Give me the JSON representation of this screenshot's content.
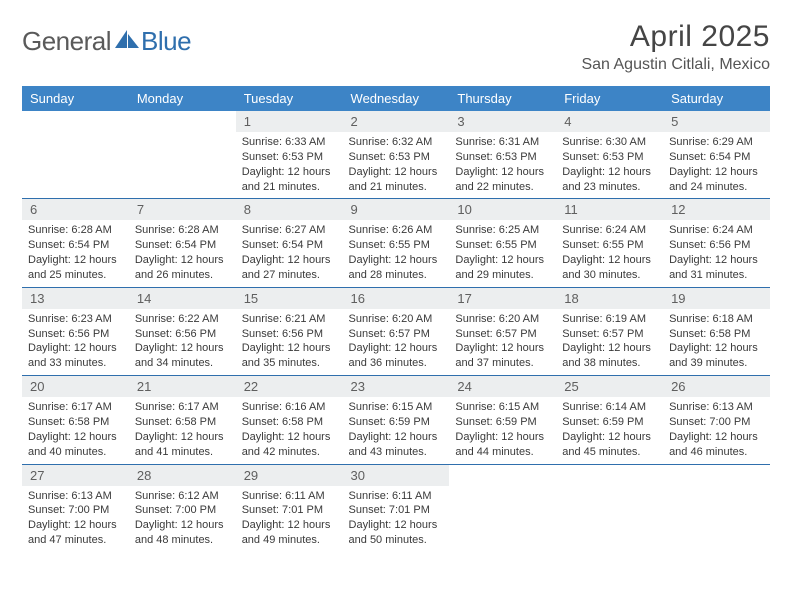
{
  "logo": {
    "general": "General",
    "blue": "Blue"
  },
  "title": "April 2025",
  "location": "San Agustin Citlali, Mexico",
  "header_color": "#3d84c6",
  "divider_color": "#2f6fad",
  "daynum_bg": "#eceeef",
  "weekdays": [
    "Sunday",
    "Monday",
    "Tuesday",
    "Wednesday",
    "Thursday",
    "Friday",
    "Saturday"
  ],
  "weeks": [
    [
      null,
      null,
      {
        "n": "1",
        "sr": "Sunrise: 6:33 AM",
        "ss": "Sunset: 6:53 PM",
        "d1": "Daylight: 12 hours",
        "d2": "and 21 minutes."
      },
      {
        "n": "2",
        "sr": "Sunrise: 6:32 AM",
        "ss": "Sunset: 6:53 PM",
        "d1": "Daylight: 12 hours",
        "d2": "and 21 minutes."
      },
      {
        "n": "3",
        "sr": "Sunrise: 6:31 AM",
        "ss": "Sunset: 6:53 PM",
        "d1": "Daylight: 12 hours",
        "d2": "and 22 minutes."
      },
      {
        "n": "4",
        "sr": "Sunrise: 6:30 AM",
        "ss": "Sunset: 6:53 PM",
        "d1": "Daylight: 12 hours",
        "d2": "and 23 minutes."
      },
      {
        "n": "5",
        "sr": "Sunrise: 6:29 AM",
        "ss": "Sunset: 6:54 PM",
        "d1": "Daylight: 12 hours",
        "d2": "and 24 minutes."
      }
    ],
    [
      {
        "n": "6",
        "sr": "Sunrise: 6:28 AM",
        "ss": "Sunset: 6:54 PM",
        "d1": "Daylight: 12 hours",
        "d2": "and 25 minutes."
      },
      {
        "n": "7",
        "sr": "Sunrise: 6:28 AM",
        "ss": "Sunset: 6:54 PM",
        "d1": "Daylight: 12 hours",
        "d2": "and 26 minutes."
      },
      {
        "n": "8",
        "sr": "Sunrise: 6:27 AM",
        "ss": "Sunset: 6:54 PM",
        "d1": "Daylight: 12 hours",
        "d2": "and 27 minutes."
      },
      {
        "n": "9",
        "sr": "Sunrise: 6:26 AM",
        "ss": "Sunset: 6:55 PM",
        "d1": "Daylight: 12 hours",
        "d2": "and 28 minutes."
      },
      {
        "n": "10",
        "sr": "Sunrise: 6:25 AM",
        "ss": "Sunset: 6:55 PM",
        "d1": "Daylight: 12 hours",
        "d2": "and 29 minutes."
      },
      {
        "n": "11",
        "sr": "Sunrise: 6:24 AM",
        "ss": "Sunset: 6:55 PM",
        "d1": "Daylight: 12 hours",
        "d2": "and 30 minutes."
      },
      {
        "n": "12",
        "sr": "Sunrise: 6:24 AM",
        "ss": "Sunset: 6:56 PM",
        "d1": "Daylight: 12 hours",
        "d2": "and 31 minutes."
      }
    ],
    [
      {
        "n": "13",
        "sr": "Sunrise: 6:23 AM",
        "ss": "Sunset: 6:56 PM",
        "d1": "Daylight: 12 hours",
        "d2": "and 33 minutes."
      },
      {
        "n": "14",
        "sr": "Sunrise: 6:22 AM",
        "ss": "Sunset: 6:56 PM",
        "d1": "Daylight: 12 hours",
        "d2": "and 34 minutes."
      },
      {
        "n": "15",
        "sr": "Sunrise: 6:21 AM",
        "ss": "Sunset: 6:56 PM",
        "d1": "Daylight: 12 hours",
        "d2": "and 35 minutes."
      },
      {
        "n": "16",
        "sr": "Sunrise: 6:20 AM",
        "ss": "Sunset: 6:57 PM",
        "d1": "Daylight: 12 hours",
        "d2": "and 36 minutes."
      },
      {
        "n": "17",
        "sr": "Sunrise: 6:20 AM",
        "ss": "Sunset: 6:57 PM",
        "d1": "Daylight: 12 hours",
        "d2": "and 37 minutes."
      },
      {
        "n": "18",
        "sr": "Sunrise: 6:19 AM",
        "ss": "Sunset: 6:57 PM",
        "d1": "Daylight: 12 hours",
        "d2": "and 38 minutes."
      },
      {
        "n": "19",
        "sr": "Sunrise: 6:18 AM",
        "ss": "Sunset: 6:58 PM",
        "d1": "Daylight: 12 hours",
        "d2": "and 39 minutes."
      }
    ],
    [
      {
        "n": "20",
        "sr": "Sunrise: 6:17 AM",
        "ss": "Sunset: 6:58 PM",
        "d1": "Daylight: 12 hours",
        "d2": "and 40 minutes."
      },
      {
        "n": "21",
        "sr": "Sunrise: 6:17 AM",
        "ss": "Sunset: 6:58 PM",
        "d1": "Daylight: 12 hours",
        "d2": "and 41 minutes."
      },
      {
        "n": "22",
        "sr": "Sunrise: 6:16 AM",
        "ss": "Sunset: 6:58 PM",
        "d1": "Daylight: 12 hours",
        "d2": "and 42 minutes."
      },
      {
        "n": "23",
        "sr": "Sunrise: 6:15 AM",
        "ss": "Sunset: 6:59 PM",
        "d1": "Daylight: 12 hours",
        "d2": "and 43 minutes."
      },
      {
        "n": "24",
        "sr": "Sunrise: 6:15 AM",
        "ss": "Sunset: 6:59 PM",
        "d1": "Daylight: 12 hours",
        "d2": "and 44 minutes."
      },
      {
        "n": "25",
        "sr": "Sunrise: 6:14 AM",
        "ss": "Sunset: 6:59 PM",
        "d1": "Daylight: 12 hours",
        "d2": "and 45 minutes."
      },
      {
        "n": "26",
        "sr": "Sunrise: 6:13 AM",
        "ss": "Sunset: 7:00 PM",
        "d1": "Daylight: 12 hours",
        "d2": "and 46 minutes."
      }
    ],
    [
      {
        "n": "27",
        "sr": "Sunrise: 6:13 AM",
        "ss": "Sunset: 7:00 PM",
        "d1": "Daylight: 12 hours",
        "d2": "and 47 minutes."
      },
      {
        "n": "28",
        "sr": "Sunrise: 6:12 AM",
        "ss": "Sunset: 7:00 PM",
        "d1": "Daylight: 12 hours",
        "d2": "and 48 minutes."
      },
      {
        "n": "29",
        "sr": "Sunrise: 6:11 AM",
        "ss": "Sunset: 7:01 PM",
        "d1": "Daylight: 12 hours",
        "d2": "and 49 minutes."
      },
      {
        "n": "30",
        "sr": "Sunrise: 6:11 AM",
        "ss": "Sunset: 7:01 PM",
        "d1": "Daylight: 12 hours",
        "d2": "and 50 minutes."
      },
      null,
      null,
      null
    ]
  ]
}
